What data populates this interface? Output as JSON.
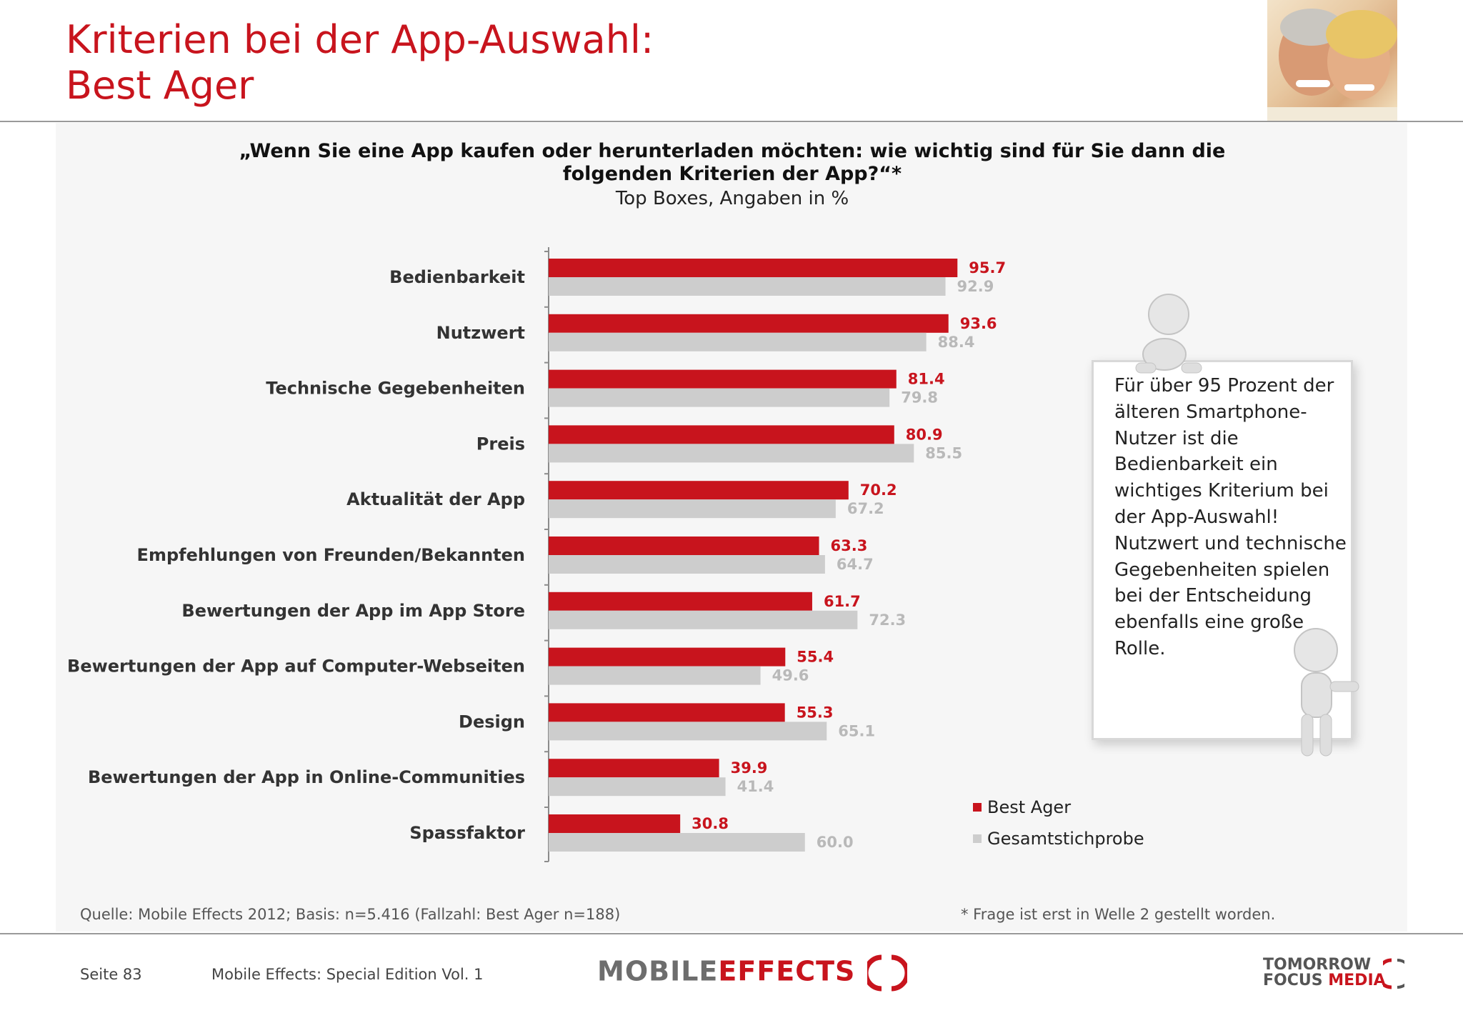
{
  "header": {
    "title_line1": "Kriterien bei der App-Auswahl:",
    "title_line2": "Best Ager"
  },
  "question": {
    "line1": "„Wenn Sie eine App kaufen oder herunterladen möchten: wie wichtig sind für Sie dann die",
    "line2": "folgenden Kriterien der App?“*",
    "subtitle": "Top Boxes, Angaben in %"
  },
  "chart_data": {
    "type": "bar",
    "orientation": "horizontal",
    "categories": [
      "Bedienbarkeit",
      "Nutzwert",
      "Technische Gegebenheiten",
      "Preis",
      "Aktualität der App",
      "Empfehlungen von Freunden/Bekannten",
      "Bewertungen der App im App Store",
      "Bewertungen der App auf Computer-Webseiten",
      "Design",
      "Bewertungen der App in Online-Communities",
      "Spassfaktor"
    ],
    "series": [
      {
        "name": "Best Ager",
        "color": "#c8141d",
        "values": [
          95.7,
          93.6,
          81.4,
          80.9,
          70.2,
          63.3,
          61.7,
          55.4,
          55.3,
          39.9,
          30.8
        ]
      },
      {
        "name": "Gesamtstichprobe",
        "color": "#cdcdcd",
        "values": [
          92.9,
          88.4,
          79.8,
          85.5,
          67.2,
          64.7,
          72.3,
          49.6,
          65.1,
          41.4,
          60.0
        ]
      }
    ],
    "xlim": [
      0,
      100
    ],
    "legend_position": "bottom-right",
    "grid": false
  },
  "callout": {
    "text": "Für über 95 Prozent der älteren Smartphone-Nutzer ist die Bedienbarkeit ein wichtiges Kriterium bei der App-Auswahl! Nutzwert und technische Gegebenheiten spielen bei der Entscheidung ebenfalls eine große Rolle."
  },
  "footer": {
    "source": "Quelle: Mobile Effects 2012; Basis: n=5.416 (Fallzahl: Best Ager n=188)",
    "footnote": "* Frage ist erst in Welle 2 gestellt worden.",
    "page": "Seite 83",
    "edition": "Mobile Effects: Special Edition Vol. 1",
    "logo_left_a": "MOBILE",
    "logo_left_b": "EFFECTS",
    "logo_right_line1": "TOMORROW",
    "logo_right_line2a": "FOCUS",
    "logo_right_line2b": "MEDIA"
  }
}
